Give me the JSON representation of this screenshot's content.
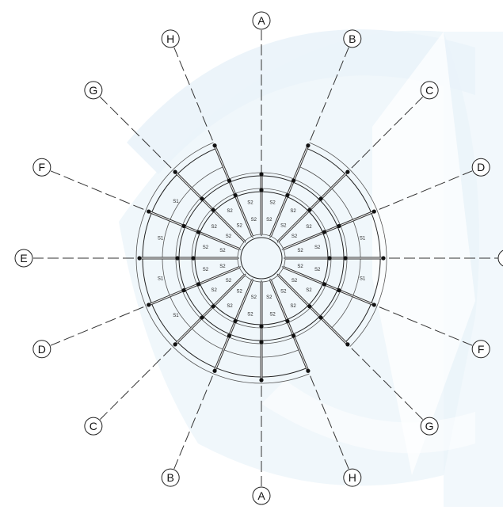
{
  "grid_axes": [
    {
      "id": "A-top",
      "label": "A",
      "angle": -90,
      "end": "far"
    },
    {
      "id": "A-bottom",
      "label": "A",
      "angle": 90,
      "end": "far"
    },
    {
      "id": "B-upper",
      "label": "B",
      "angle": -67.5,
      "end": "far"
    },
    {
      "id": "B-lower",
      "label": "B",
      "angle": 112.5,
      "end": "far"
    },
    {
      "id": "C-upper",
      "label": "C",
      "angle": -45,
      "end": "far"
    },
    {
      "id": "C-lower",
      "label": "C",
      "angle": 135,
      "end": "far"
    },
    {
      "id": "D-upper",
      "label": "D",
      "angle": -22.5,
      "end": "far"
    },
    {
      "id": "D-lower",
      "label": "D",
      "angle": 157.5,
      "end": "far"
    },
    {
      "id": "E-left",
      "label": "E",
      "angle": 180,
      "end": "far"
    },
    {
      "id": "E-right",
      "label": "E",
      "angle": 0,
      "end": "clipped"
    },
    {
      "id": "F-lower",
      "label": "F",
      "angle": 22.5,
      "end": "far"
    },
    {
      "id": "F-upper",
      "label": "F",
      "angle": 202.5,
      "end": "far"
    },
    {
      "id": "G-lower",
      "label": "G",
      "angle": 45,
      "end": "far"
    },
    {
      "id": "G-upper",
      "label": "G",
      "angle": 225,
      "end": "far"
    },
    {
      "id": "H-lower",
      "label": "H",
      "angle": 67.5,
      "end": "far"
    },
    {
      "id": "H-upper",
      "label": "H",
      "angle": 247.5,
      "end": "far"
    }
  ],
  "section_label": "S2",
  "outer_section_label": "S1",
  "colors": {
    "line": "#333333",
    "watermark": "#eaf3fa",
    "background": "#ffffff"
  }
}
